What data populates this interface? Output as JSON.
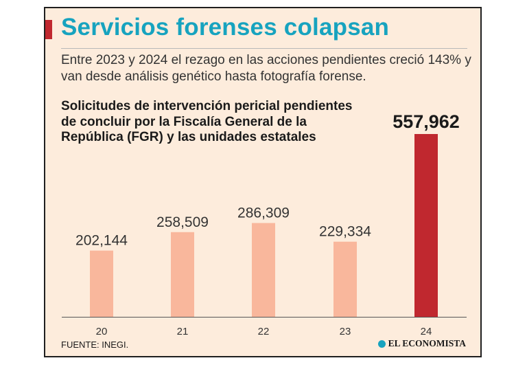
{
  "headline": "Servicios forenses colapsan",
  "subtitle": "Entre 2023 y 2024 el rezago en las acciones pendientes creció 143% y van desde análisis genético hasta fotografía forense.",
  "source": "FUENTE: INEGI.",
  "publisher": "EL ECONOMISTA",
  "colors": {
    "background": "#fdecdc",
    "title": "#17a3bf",
    "bar_regular": "#f9b79c",
    "bar_highlight": "#c0282f",
    "accent": "#c0282f"
  },
  "chart_data": {
    "type": "bar",
    "title": "Solicitudes de intervención pericial pendientes de concluir por la Fiscalía General de la República (FGR) y las unidades estatales",
    "categories": [
      "20",
      "21",
      "22",
      "23",
      "24"
    ],
    "values": [
      202144,
      258509,
      286309,
      229334,
      557962
    ],
    "value_labels": [
      "202,144",
      "258,509",
      "286,309",
      "229,334",
      "557,962"
    ],
    "highlight_index": 4,
    "xlabel": "",
    "ylabel": "",
    "ylim": [
      0,
      557962
    ],
    "grid": false
  }
}
